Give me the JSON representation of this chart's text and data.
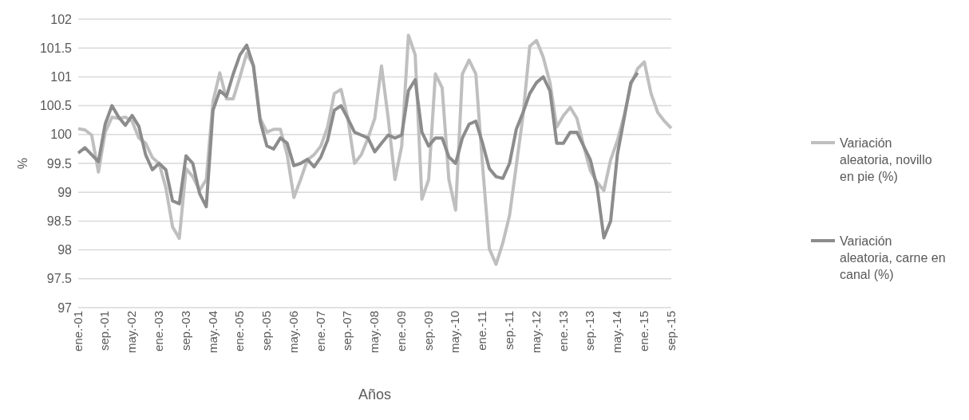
{
  "chart_data": {
    "type": "line",
    "xlabel": "Años",
    "ylabel": "%",
    "categories": [
      "ene.-01",
      null,
      null,
      null,
      "sep.-01",
      null,
      null,
      null,
      "may.-02",
      null,
      null,
      null,
      "ene.-03",
      null,
      null,
      null,
      "sep.-03",
      null,
      null,
      null,
      "may.-04",
      null,
      null,
      null,
      "ene.-05",
      null,
      null,
      null,
      "sep.-05",
      null,
      null,
      null,
      "may.-06",
      null,
      null,
      null,
      "ene.-07",
      null,
      null,
      null,
      "sep.-07",
      null,
      null,
      null,
      "may.-08",
      null,
      null,
      null,
      "ene.-09",
      null,
      null,
      null,
      "sep.-09",
      null,
      null,
      null,
      "may.-10",
      null,
      null,
      null,
      "ene.-11",
      null,
      null,
      null,
      "sep.-11",
      null,
      null,
      null,
      "may.-12",
      null,
      null,
      null,
      "ene.-13",
      null,
      null,
      null,
      "sep.-13",
      null,
      null,
      null,
      "may.-14",
      null,
      null,
      null,
      "ene.-15",
      null,
      null,
      null,
      "sep.-15"
    ],
    "series": [
      {
        "name": "Variación aleatoria, novillo en pie (%)",
        "color": "#bfbfbf",
        "values": [
          100.1,
          100.08,
          99.99,
          99.35,
          100.04,
          100.3,
          100.28,
          100.3,
          100.23,
          99.94,
          99.85,
          99.6,
          99.5,
          99.08,
          98.4,
          98.2,
          99.41,
          99.27,
          99.03,
          99.22,
          100.57,
          101.07,
          100.62,
          100.62,
          101.0,
          101.41,
          101.19,
          100.28,
          100.04,
          100.09,
          100.09,
          99.65,
          98.91,
          99.22,
          99.56,
          99.65,
          99.8,
          100.13,
          100.71,
          100.78,
          100.28,
          99.5,
          99.65,
          99.94,
          100.28,
          101.19,
          100.28,
          99.22,
          99.8,
          101.72,
          101.38,
          98.88,
          99.22,
          101.05,
          100.81,
          99.22,
          98.69,
          101.05,
          101.29,
          101.05,
          99.46,
          98.02,
          97.75,
          98.12,
          98.6,
          99.46,
          100.33,
          101.53,
          101.63,
          101.34,
          100.9,
          100.13,
          100.33,
          100.47,
          100.28,
          99.8,
          99.37,
          99.17,
          99.03,
          99.56,
          99.89,
          100.33,
          100.86,
          101.14,
          101.26,
          100.71,
          100.38,
          100.23,
          100.11
        ]
      },
      {
        "name": "Variación aleatoria, carne en canal (%)",
        "color": "#8c8c8c",
        "values": [
          99.68,
          99.77,
          99.65,
          99.53,
          100.18,
          100.5,
          100.3,
          100.16,
          100.33,
          100.14,
          99.65,
          99.39,
          99.5,
          99.39,
          98.85,
          98.8,
          99.63,
          99.5,
          98.98,
          98.75,
          100.42,
          100.76,
          100.66,
          101.05,
          101.38,
          101.55,
          101.19,
          100.23,
          99.8,
          99.75,
          99.94,
          99.85,
          99.46,
          99.5,
          99.57,
          99.44,
          99.61,
          99.9,
          100.42,
          100.5,
          100.28,
          100.04,
          99.99,
          99.94,
          99.7,
          99.85,
          99.99,
          99.94,
          99.99,
          100.76,
          100.95,
          100.04,
          99.8,
          99.94,
          99.94,
          99.61,
          99.5,
          99.94,
          100.18,
          100.23,
          99.85,
          99.41,
          99.27,
          99.24,
          99.5,
          100.09,
          100.38,
          100.71,
          100.9,
          101.0,
          100.76,
          99.85,
          99.85,
          100.04,
          100.04,
          99.8,
          99.56,
          99.08,
          98.21,
          98.5,
          99.65,
          100.28,
          100.9,
          101.07,
          null,
          null,
          null,
          null,
          null
        ]
      }
    ],
    "ylim": [
      97,
      102
    ],
    "yticks": [
      97,
      97.5,
      98,
      98.5,
      99,
      99.5,
      100,
      100.5,
      101,
      101.5,
      102
    ],
    "grid": "y",
    "legend": "right",
    "marker": "none",
    "line_style": "solid"
  }
}
